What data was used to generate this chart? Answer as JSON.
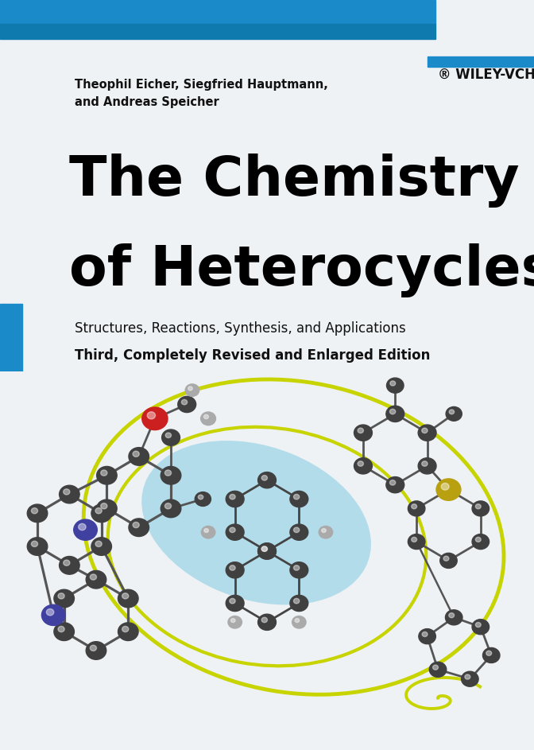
{
  "bg_color": "#eef2f5",
  "top_bar_color1": "#1b8ac8",
  "top_bar_color2": "#0e7aad",
  "author_text_line1": "Theophil Eicher, Siegfried Hauptmann,",
  "author_text_line2": "and Andreas Speicher",
  "author_fontsize": 10.5,
  "author_color": "#111111",
  "wiley_text": "® WILEY-VCH",
  "wiley_fontsize": 12,
  "title_line1": "The Chemistry",
  "title_line2": "of Heterocycles",
  "title_fontsize": 50,
  "title_color": "#000000",
  "subtitle1": "Structures, Reactions, Synthesis, and Applications",
  "subtitle1_fontsize": 12,
  "subtitle2": "Third, Completely Revised and Enlarged Edition",
  "subtitle2_fontsize": 12,
  "subtitle_color": "#111111",
  "left_bar_color": "#1b8ac8",
  "wiley_stripe_color": "#1b8ac8",
  "C_color": "#404040",
  "N_color": "#4040a0",
  "O_color": "#cc2020",
  "S_color": "#b8a010",
  "H_color": "#aaaaaa",
  "loop_color": "#c8d400",
  "blue_oval_color": "#7ec8e3"
}
